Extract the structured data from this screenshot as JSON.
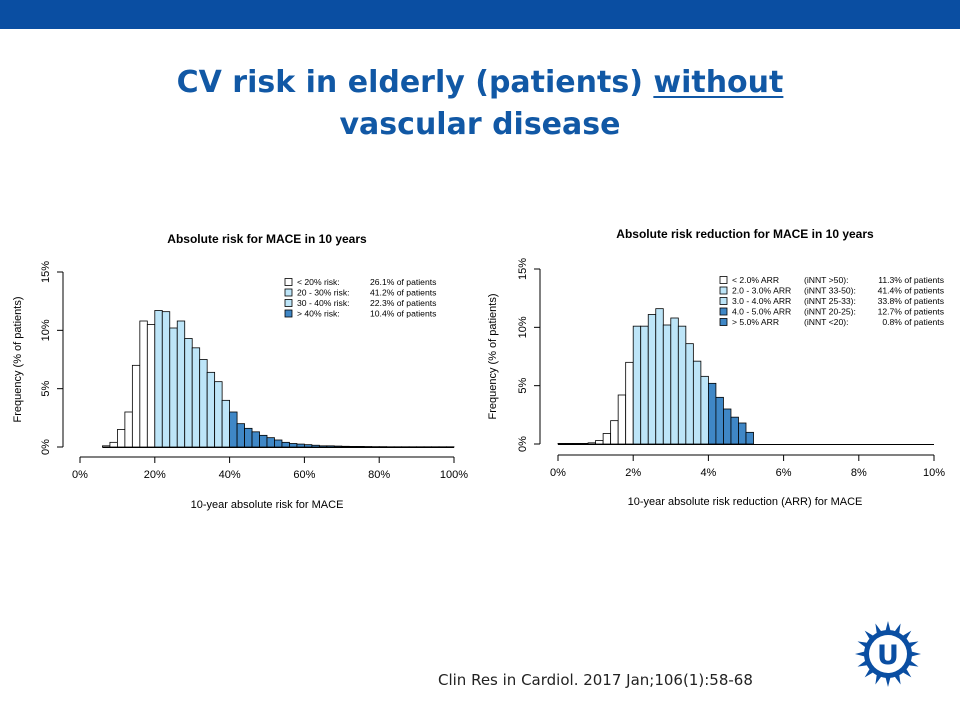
{
  "slide": {
    "title_line1_pre": "CV risk in elderly (patients) ",
    "title_line1_underlined": "without",
    "title_line2": "vascular disease",
    "citation": "Clin Res in Cardiol. 2017 Jan;106(1):58-68",
    "colors": {
      "topbar": "#0a4ea2",
      "title": "#1158a5",
      "logo": "#0a4ea2"
    },
    "logo_letter": "U"
  },
  "chart_data": [
    {
      "type": "bar",
      "title": "Absolute risk for MACE in 10 years",
      "xlabel": "10-year absolute risk for MACE",
      "ylabel": "Frequency (% of patients)",
      "xlim": [
        0,
        100
      ],
      "ylim": [
        0,
        15
      ],
      "x_ticks": [
        "0%",
        "20%",
        "40%",
        "60%",
        "80%",
        "100%"
      ],
      "y_ticks": [
        "0%",
        "5%",
        "10%",
        "15%"
      ],
      "bin_width": 2,
      "bin_starts": [
        6,
        8,
        10,
        12,
        14,
        16,
        18,
        20,
        22,
        24,
        26,
        28,
        30,
        32,
        34,
        36,
        38,
        40,
        42,
        44,
        46,
        48,
        50,
        52,
        54,
        56,
        58,
        60,
        62,
        64,
        66,
        68,
        70,
        72,
        74,
        76,
        78,
        80,
        82,
        84,
        86,
        88,
        90,
        92,
        94,
        96,
        98
      ],
      "values": [
        0.1,
        0.4,
        1.5,
        3.0,
        7.0,
        10.8,
        10.5,
        11.7,
        11.6,
        10.2,
        10.8,
        9.3,
        8.5,
        7.5,
        6.4,
        5.6,
        4.0,
        3.0,
        2.0,
        1.6,
        1.3,
        1.0,
        0.8,
        0.6,
        0.4,
        0.3,
        0.25,
        0.2,
        0.15,
        0.1,
        0.1,
        0.08,
        0.06,
        0.05,
        0.05,
        0.04,
        0.03,
        0.03,
        0.02,
        0.02,
        0.02,
        0.02,
        0.02,
        0.02,
        0.02,
        0.02,
        0.02
      ],
      "groups": [
        {
          "label": "< 20% risk:",
          "pct": "26.1% of patients",
          "color": "#ffffff",
          "from": 0,
          "to": 20
        },
        {
          "label": "20 - 30% risk:",
          "pct": "41.2% of patients",
          "color": "#bde5f8",
          "from": 20,
          "to": 30
        },
        {
          "label": "30 - 40% risk:",
          "pct": "22.3% of patients",
          "color": "#bde5f8",
          "from": 30,
          "to": 40
        },
        {
          "label": "> 40% risk:",
          "pct": "10.4% of patients",
          "color": "#3f87c6",
          "from": 40,
          "to": 100
        }
      ],
      "legend": "top-right"
    },
    {
      "type": "bar",
      "title": "Absolute risk reduction for MACE in 10 years",
      "xlabel": "10-year absolute risk reduction (ARR) for MACE",
      "ylabel": "Frequency (% of patients)",
      "xlim": [
        0,
        10
      ],
      "ylim": [
        0,
        15
      ],
      "x_ticks": [
        "0%",
        "2%",
        "4%",
        "6%",
        "8%",
        "10%"
      ],
      "y_ticks": [
        "0%",
        "5%",
        "10%",
        "15%"
      ],
      "bin_width": 0.2,
      "bin_starts": [
        0.0,
        0.2,
        0.4,
        0.6,
        0.8,
        1.0,
        1.2,
        1.4,
        1.6,
        1.8,
        2.0,
        2.2,
        2.4,
        2.6,
        2.8,
        3.0,
        3.2,
        3.4,
        3.6,
        3.8,
        4.0,
        4.2,
        4.4,
        4.6,
        4.8,
        5.0
      ],
      "values": [
        0.05,
        0.05,
        0.05,
        0.05,
        0.1,
        0.3,
        0.9,
        2.0,
        4.2,
        7.0,
        10.1,
        10.1,
        11.1,
        11.6,
        10.2,
        10.8,
        10.1,
        8.6,
        7.1,
        5.8,
        5.2,
        4.0,
        3.0,
        2.3,
        1.8,
        1.0
      ],
      "groups": [
        {
          "label": "< 2.0% ARR",
          "nnt": "(iNNT >50):",
          "pct": "11.3% of patients",
          "color": "#ffffff",
          "from": 0,
          "to": 2
        },
        {
          "label": "2.0 - 3.0% ARR",
          "nnt": "(iNNT 33-50):",
          "pct": "41.4% of patients",
          "color": "#bde5f8",
          "from": 2,
          "to": 3
        },
        {
          "label": "3.0 - 4.0% ARR",
          "nnt": "(iNNT 25-33):",
          "pct": "33.8% of patients",
          "color": "#bde5f8",
          "from": 3,
          "to": 4
        },
        {
          "label": "4.0 - 5.0% ARR",
          "nnt": "(iNNT 20-25):",
          "pct": "12.7% of patients",
          "color": "#3f87c6",
          "from": 4,
          "to": 5
        },
        {
          "label": "> 5.0% ARR",
          "nnt": "(iNNT <20):",
          "pct": "0.8% of patients",
          "color": "#3f87c6",
          "from": 5,
          "to": 10
        }
      ],
      "legend": "top-right"
    }
  ]
}
